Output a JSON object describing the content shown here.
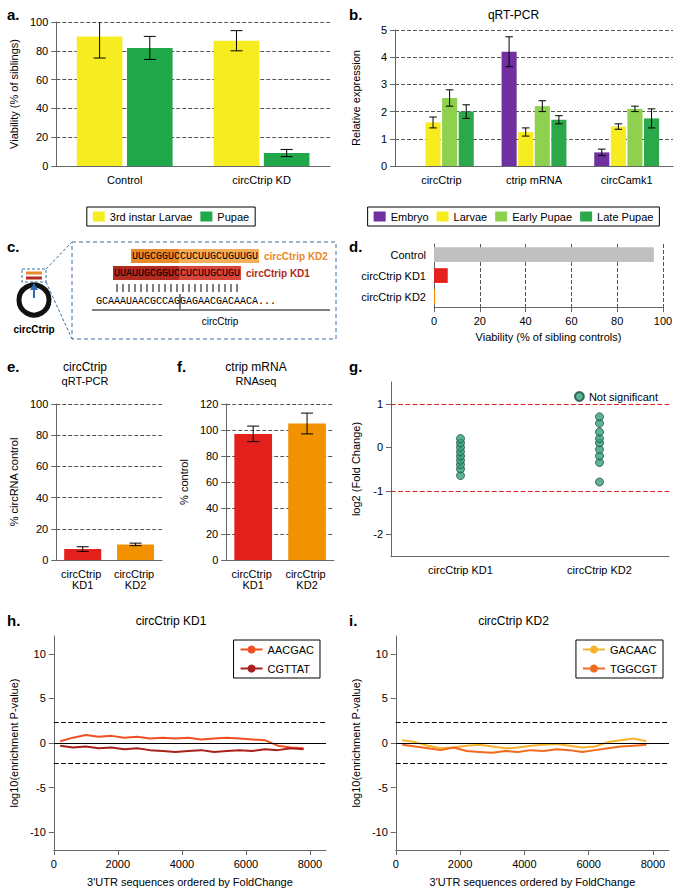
{
  "chart_data": [
    {
      "panel": "a.",
      "type": "bar",
      "categories": [
        "Control",
        "circCtrip KD"
      ],
      "series": [
        {
          "name": "3rd instar Larvae",
          "color": "#f7ec1f",
          "values": [
            90,
            87
          ],
          "errors": [
            15,
            7
          ]
        },
        {
          "name": "Pupae",
          "color": "#20a84a",
          "values": [
            82,
            9
          ],
          "errors": [
            8,
            2.5
          ]
        }
      ],
      "ylabel": "Viability (% of siblings)",
      "ylim": [
        0,
        100
      ],
      "yticks": [
        0,
        20,
        40,
        60,
        80,
        100
      ],
      "grid": true,
      "legend": "bottom"
    },
    {
      "panel": "b.",
      "type": "bar",
      "title": "qRT-PCR",
      "categories": [
        "circCtrip",
        "ctrip mRNA",
        "circCamk1"
      ],
      "series": [
        {
          "name": "Embryo",
          "color": "#7030a0",
          "values": [
            null,
            4.2,
            0.5
          ],
          "errors": [
            null,
            0.55,
            0.12
          ]
        },
        {
          "name": "Larvae",
          "color": "#f7ec1f",
          "values": [
            1.6,
            1.25,
            1.45
          ],
          "errors": [
            0.2,
            0.15,
            0.1
          ]
        },
        {
          "name": "Early Pupae",
          "color": "#8dd14f",
          "values": [
            2.5,
            2.2,
            2.1
          ],
          "errors": [
            0.3,
            0.2,
            0.1
          ]
        },
        {
          "name": "Late Pupae",
          "color": "#2aa84a",
          "values": [
            2.0,
            1.7,
            1.75
          ],
          "errors": [
            0.25,
            0.15,
            0.35
          ]
        }
      ],
      "ylabel": "Relative expression",
      "ylim": [
        0,
        5
      ],
      "yticks": [
        0,
        1,
        2,
        3,
        4,
        5
      ],
      "grid": true,
      "legend": "bottom"
    },
    {
      "panel": "c.",
      "type": "diagram",
      "circle_label": "circCtrip",
      "probes": [
        {
          "name": "circCtrip KD2",
          "parts": [
            "UUGCGGUC",
            "CUCUUGCUGUUGU"
          ],
          "colors": [
            "#e8892a",
            "#f5ad58"
          ]
        },
        {
          "name": "circCtrip KD1",
          "parts": [
            "UUAUUGCGGUC",
            "CUCUUGCUGU"
          ],
          "colors": [
            "#b22a20",
            "#d9453b"
          ]
        }
      ],
      "target": {
        "parts": [
          "GCAAAUAACGCCAG",
          "GAGAACGACAACA..."
        ],
        "label": "circCtrip"
      }
    },
    {
      "panel": "d.",
      "type": "bar",
      "orientation": "horizontal",
      "categories": [
        "Control",
        "circCtrip KD1",
        "circCtrip KD2"
      ],
      "series": [
        {
          "values": [
            96,
            6,
            0.5
          ],
          "colors": [
            "#c0c0c0",
            "#e3201b",
            "#f39200"
          ]
        }
      ],
      "xlabel": "Viability (% of sibling controls)",
      "xlim": [
        0,
        100
      ],
      "xticks": [
        0,
        20,
        40,
        60,
        80,
        100
      ],
      "grid": true
    },
    {
      "panel": "e.",
      "type": "bar",
      "title": "circCtrip",
      "subtitle": "qRT-PCR",
      "categories": [
        "circCtrip KD1",
        "circCtrip KD2"
      ],
      "series": [
        {
          "values": [
            7,
            10
          ],
          "errors": [
            1.5,
            0.8
          ],
          "colors": [
            "#e3201b",
            "#f39200"
          ]
        }
      ],
      "ylabel": "% circRNA control",
      "ylim": [
        0,
        100
      ],
      "yticks": [
        0,
        20,
        40,
        60,
        80,
        100
      ],
      "grid": true
    },
    {
      "panel": "f.",
      "type": "bar",
      "title": "ctrip mRNA",
      "subtitle": "RNAseq",
      "categories": [
        "circCtrip KD1",
        "circCtrip KD2"
      ],
      "series": [
        {
          "values": [
            97,
            105
          ],
          "errors": [
            6,
            8
          ],
          "colors": [
            "#e3201b",
            "#f39200"
          ]
        }
      ],
      "ylabel": "% control",
      "ylim": [
        0,
        120
      ],
      "yticks": [
        0,
        20,
        40,
        60,
        80,
        100,
        120
      ],
      "grid": true
    },
    {
      "panel": "g.",
      "type": "scatter",
      "categories": [
        "circCtrip KD1",
        "circCtrip KD2"
      ],
      "series": [
        {
          "name": "Not significant",
          "color": "#35a07f",
          "values": [
            [
              -0.65,
              -0.5,
              -0.4,
              -0.3,
              -0.2,
              -0.1,
              0,
              0.1,
              0.2
            ],
            [
              -0.8,
              -0.35,
              -0.2,
              -0.05,
              0.1,
              0.2,
              0.35,
              0.55,
              0.7
            ]
          ]
        }
      ],
      "ylabel": "log2 (Fold Change)",
      "ylim": [
        -2.5,
        1.5
      ],
      "yticks": [
        -2,
        -1,
        0,
        1
      ],
      "grid": false,
      "legend": "top-right",
      "reference_lines": [
        {
          "value": -1,
          "color": "#e3201b",
          "line_style": "dashed"
        },
        {
          "value": 1,
          "color": "#e3201b",
          "line_style": "dashed"
        }
      ]
    },
    {
      "panel": "h.",
      "type": "line",
      "title": "circCtrip KD1",
      "x": [
        200,
        600,
        1000,
        1400,
        1800,
        2200,
        2600,
        3000,
        3400,
        3800,
        4200,
        4600,
        5000,
        5400,
        5800,
        6200,
        6600,
        7000,
        7400,
        7800
      ],
      "series": [
        {
          "name": "AACGAC",
          "color": "#f04e23",
          "values": [
            0.2,
            0.6,
            0.9,
            0.7,
            0.8,
            0.6,
            0.7,
            0.5,
            0.6,
            0.5,
            0.6,
            0.4,
            0.5,
            0.6,
            0.5,
            0.4,
            0.3,
            -0.3,
            -0.5,
            -0.6
          ]
        },
        {
          "name": "CGTTAT",
          "color": "#a8211a",
          "values": [
            -0.3,
            -0.5,
            -0.4,
            -0.6,
            -0.5,
            -0.7,
            -0.6,
            -0.8,
            -0.9,
            -1.0,
            -0.9,
            -0.8,
            -1.0,
            -0.9,
            -0.8,
            -0.9,
            -0.7,
            -0.8,
            -0.6,
            -0.7
          ]
        }
      ],
      "xlabel": "3'UTR sequences ordered by FoldChange",
      "xlim": [
        0,
        8500
      ],
      "xticks": [
        0,
        2000,
        4000,
        6000,
        8000
      ],
      "ylabel": "log10(enrichment P-value)",
      "ylim": [
        -12,
        12
      ],
      "yticks": [
        -10,
        -5,
        0,
        5,
        10
      ],
      "grid": false,
      "legend": "top-right",
      "reference_lines": [
        {
          "value": -2.3,
          "color": "#000000",
          "line_style": "dashed"
        },
        {
          "value": 0,
          "color": "#000000",
          "line_style": "solid"
        },
        {
          "value": 2.3,
          "color": "#000000",
          "line_style": "dashed"
        }
      ]
    },
    {
      "panel": "i.",
      "type": "line",
      "title": "circCtrip KD2",
      "x": [
        200,
        600,
        1000,
        1400,
        1800,
        2200,
        2600,
        3000,
        3400,
        3800,
        4200,
        4600,
        5000,
        5400,
        5800,
        6200,
        6600,
        7000,
        7400,
        7800
      ],
      "series": [
        {
          "name": "GACAAC",
          "color": "#f7b22d",
          "values": [
            0.3,
            0.1,
            -0.3,
            -0.6,
            -0.5,
            -0.3,
            -0.2,
            -0.4,
            -0.6,
            -0.5,
            -0.3,
            -0.2,
            -0.1,
            -0.3,
            -0.5,
            -0.4,
            0.1,
            0.3,
            0.5,
            0.2
          ]
        },
        {
          "name": "TGGCGT",
          "color": "#f06a1f",
          "values": [
            -0.2,
            -0.4,
            -0.6,
            -0.8,
            -0.5,
            -0.9,
            -1.0,
            -1.1,
            -0.9,
            -1.0,
            -0.8,
            -0.9,
            -0.7,
            -0.8,
            -1.0,
            -0.8,
            -0.6,
            -0.4,
            -0.3,
            -0.2
          ]
        }
      ],
      "xlabel": "3'UTR sequences ordered by FoldChange",
      "xlim": [
        0,
        8500
      ],
      "xticks": [
        0,
        2000,
        4000,
        6000,
        8000
      ],
      "ylabel": "log10(enrichment P-value)",
      "ylim": [
        -12,
        12
      ],
      "yticks": [
        -10,
        -5,
        0,
        5,
        10
      ],
      "grid": false,
      "legend": "top-right",
      "reference_lines": [
        {
          "value": -2.3,
          "color": "#000000",
          "line_style": "dashed"
        },
        {
          "value": 0,
          "color": "#000000",
          "line_style": "solid"
        },
        {
          "value": 2.3,
          "color": "#000000",
          "line_style": "dashed"
        }
      ]
    }
  ]
}
